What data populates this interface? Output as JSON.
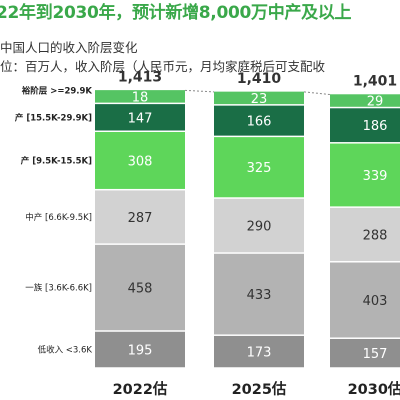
{
  "title": "22年到2030年，预计新增8,000万中产及以上",
  "subtitle": "中国人口的收入阶层变化",
  "unit_line": "位：百万人，收入阶层（人民币元，月均家庭税后可支配收",
  "colors": {
    "title": "#3aa84a",
    "affluent": "#55c463",
    "upper_middle": "#1a6e46",
    "middle": "#5ed65a",
    "lower_middle": "#d2d2d2",
    "aspirant": "#b3b3b3",
    "low": "#8f8f8f",
    "connector": "#888888"
  },
  "chart_data": {
    "type": "bar",
    "stacked": true,
    "categories": [
      "2022估",
      "2025估",
      "2030估"
    ],
    "totals": [
      "1,413",
      "1,410",
      "1,401"
    ],
    "series": [
      {
        "name": "低收入 <3.6K",
        "key": "low",
        "values": [
          195,
          173,
          157
        ]
      },
      {
        "name": "一族 [3.6K-6.6K]",
        "key": "aspirant",
        "values": [
          458,
          433,
          403
        ]
      },
      {
        "name": "中产 [6.6K-9.5K]",
        "key": "lower_middle",
        "values": [
          287,
          290,
          288
        ]
      },
      {
        "name": "产 [9.5K-15.5K]",
        "key": "middle",
        "values": [
          308,
          325,
          339
        ]
      },
      {
        "name": "产 [15.5K-29.9K]",
        "key": "upper_middle",
        "values": [
          147,
          166,
          186
        ]
      },
      {
        "name": "裕阶层 >=29.9K",
        "key": "affluent",
        "values": [
          18,
          23,
          29
        ]
      }
    ]
  }
}
